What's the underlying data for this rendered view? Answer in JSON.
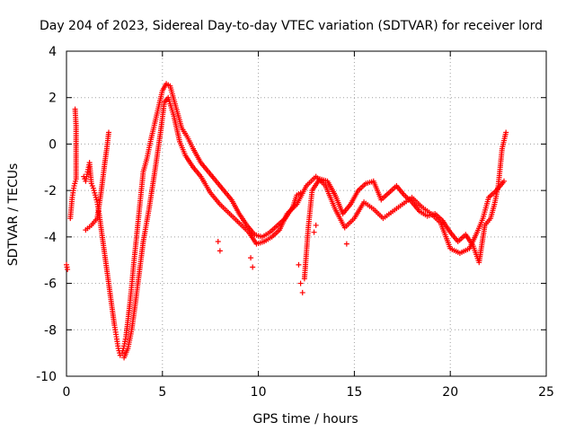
{
  "chart_data": {
    "type": "scatter",
    "title": "Day 204 of 2023, Sidereal Day-to-day VTEC variation (SDTVAR) for receiver lord",
    "xlabel": "GPS time / hours",
    "ylabel": "SDTVAR / TECUs",
    "xlim": [
      0,
      25
    ],
    "ylim": [
      -10,
      4
    ],
    "xticks": [
      0,
      5,
      10,
      15,
      20,
      25
    ],
    "yticks": [
      -10,
      -8,
      -6,
      -4,
      -2,
      0,
      2,
      4
    ],
    "grid": true,
    "marker": "+",
    "series_color": "#ff0000",
    "series": [
      {
        "name": "main-trace",
        "points": [
          [
            0.2,
            -3.2
          ],
          [
            0.3,
            -2.3
          ],
          [
            0.4,
            -1.8
          ],
          [
            0.5,
            -1.5
          ],
          [
            0.5,
            0.8
          ],
          [
            0.45,
            1.5
          ],
          [
            0.0,
            -5.2
          ],
          [
            0.05,
            -5.4
          ],
          [
            0.9,
            -1.4
          ],
          [
            1.0,
            -1.6
          ],
          [
            1.1,
            -1.2
          ],
          [
            1.2,
            -0.8
          ],
          [
            1.3,
            -1.7
          ],
          [
            1.4,
            -1.9
          ],
          [
            1.5,
            -2.2
          ],
          [
            1.6,
            -2.5
          ],
          [
            1.7,
            -3.0
          ],
          [
            1.8,
            -3.6
          ],
          [
            1.9,
            -4.2
          ],
          [
            2.0,
            -4.8
          ],
          [
            2.1,
            -5.4
          ],
          [
            2.2,
            -6.0
          ],
          [
            2.3,
            -6.6
          ],
          [
            2.4,
            -7.2
          ],
          [
            2.5,
            -7.8
          ],
          [
            2.6,
            -8.3
          ],
          [
            2.7,
            -8.8
          ],
          [
            2.8,
            -9.1
          ],
          [
            2.9,
            -9.0
          ],
          [
            3.0,
            -8.7
          ],
          [
            3.1,
            -8.3
          ],
          [
            3.2,
            -7.6
          ],
          [
            3.3,
            -6.9
          ],
          [
            3.4,
            -6.1
          ],
          [
            3.5,
            -5.2
          ],
          [
            3.6,
            -4.4
          ],
          [
            3.7,
            -3.6
          ],
          [
            3.8,
            -2.8
          ],
          [
            3.9,
            -2.0
          ],
          [
            4.0,
            -1.2
          ],
          [
            4.2,
            -0.6
          ],
          [
            4.4,
            0.2
          ],
          [
            4.6,
            0.9
          ],
          [
            4.8,
            1.6
          ],
          [
            5.0,
            2.3
          ],
          [
            5.2,
            2.6
          ],
          [
            5.4,
            2.5
          ],
          [
            5.6,
            1.9
          ],
          [
            5.8,
            1.3
          ],
          [
            6.0,
            0.7
          ],
          [
            6.3,
            0.3
          ],
          [
            6.6,
            -0.2
          ],
          [
            7.0,
            -0.8
          ],
          [
            7.4,
            -1.2
          ],
          [
            7.8,
            -1.6
          ],
          [
            8.2,
            -2.0
          ],
          [
            8.6,
            -2.4
          ],
          [
            9.0,
            -3.0
          ],
          [
            9.4,
            -3.5
          ],
          [
            9.8,
            -3.9
          ],
          [
            10.2,
            -4.0
          ],
          [
            10.6,
            -3.8
          ],
          [
            11.0,
            -3.5
          ],
          [
            11.4,
            -3.2
          ],
          [
            11.8,
            -2.7
          ],
          [
            12.0,
            -2.2
          ],
          [
            12.2,
            -2.1
          ],
          [
            12.4,
            -5.8
          ],
          [
            12.6,
            -3.6
          ],
          [
            12.8,
            -2.0
          ],
          [
            13.2,
            -1.5
          ],
          [
            13.6,
            -1.6
          ],
          [
            14.0,
            -2.2
          ],
          [
            14.4,
            -3.0
          ],
          [
            14.8,
            -2.6
          ],
          [
            15.2,
            -2.0
          ],
          [
            15.6,
            -1.7
          ],
          [
            16.0,
            -1.6
          ],
          [
            16.4,
            -2.4
          ],
          [
            16.8,
            -2.1
          ],
          [
            17.2,
            -1.8
          ],
          [
            17.6,
            -2.2
          ],
          [
            18.0,
            -2.5
          ],
          [
            18.4,
            -2.9
          ],
          [
            18.8,
            -3.1
          ],
          [
            19.2,
            -3.0
          ],
          [
            19.6,
            -3.3
          ],
          [
            20.0,
            -3.8
          ],
          [
            20.4,
            -4.2
          ],
          [
            20.8,
            -3.9
          ],
          [
            21.2,
            -4.4
          ],
          [
            21.5,
            -5.1
          ],
          [
            21.8,
            -3.5
          ],
          [
            22.1,
            -3.2
          ],
          [
            22.3,
            -2.6
          ],
          [
            22.5,
            -1.8
          ],
          [
            22.7,
            -0.2
          ],
          [
            22.9,
            0.5
          ]
        ]
      },
      {
        "name": "secondary-trace",
        "points": [
          [
            1.0,
            -3.7
          ],
          [
            1.3,
            -3.5
          ],
          [
            1.6,
            -3.2
          ],
          [
            1.8,
            -2.1
          ],
          [
            2.0,
            -0.8
          ],
          [
            2.1,
            -0.2
          ],
          [
            2.2,
            0.5
          ],
          [
            3.0,
            -9.2
          ],
          [
            3.2,
            -8.8
          ],
          [
            3.4,
            -8.0
          ],
          [
            3.6,
            -6.8
          ],
          [
            3.8,
            -5.5
          ],
          [
            4.0,
            -4.2
          ],
          [
            4.3,
            -2.8
          ],
          [
            4.6,
            -1.2
          ],
          [
            4.9,
            0.5
          ],
          [
            5.1,
            1.8
          ],
          [
            5.3,
            2.0
          ],
          [
            5.6,
            1.2
          ],
          [
            5.9,
            0.1
          ],
          [
            6.2,
            -0.5
          ],
          [
            6.6,
            -1.0
          ],
          [
            7.0,
            -1.4
          ],
          [
            7.5,
            -2.1
          ],
          [
            8.0,
            -2.6
          ],
          [
            8.5,
            -3.0
          ],
          [
            9.0,
            -3.4
          ],
          [
            9.5,
            -3.8
          ],
          [
            9.9,
            -4.3
          ],
          [
            10.3,
            -4.2
          ],
          [
            10.7,
            -4.0
          ],
          [
            11.1,
            -3.7
          ],
          [
            11.5,
            -3.0
          ],
          [
            12.0,
            -2.6
          ],
          [
            12.5,
            -1.8
          ],
          [
            13.0,
            -1.4
          ],
          [
            13.5,
            -1.8
          ],
          [
            14.0,
            -2.8
          ],
          [
            14.5,
            -3.6
          ],
          [
            15.0,
            -3.2
          ],
          [
            15.5,
            -2.5
          ],
          [
            16.0,
            -2.8
          ],
          [
            16.5,
            -3.2
          ],
          [
            17.0,
            -2.9
          ],
          [
            17.5,
            -2.6
          ],
          [
            18.0,
            -2.3
          ],
          [
            18.5,
            -2.7
          ],
          [
            19.0,
            -3.0
          ],
          [
            19.5,
            -3.4
          ],
          [
            20.0,
            -4.5
          ],
          [
            20.5,
            -4.7
          ],
          [
            21.0,
            -4.5
          ],
          [
            21.4,
            -3.8
          ],
          [
            21.7,
            -3.2
          ],
          [
            22.0,
            -2.3
          ],
          [
            22.4,
            -2.0
          ],
          [
            22.8,
            -1.6
          ]
        ]
      },
      {
        "name": "outlier-spikes",
        "points": [
          [
            8.0,
            -4.6
          ],
          [
            7.9,
            -4.2
          ],
          [
            9.7,
            -5.3
          ],
          [
            9.6,
            -4.9
          ],
          [
            12.3,
            -6.4
          ],
          [
            12.2,
            -6.0
          ],
          [
            12.1,
            -5.2
          ],
          [
            12.9,
            -3.8
          ],
          [
            14.6,
            -4.3
          ],
          [
            13.0,
            -3.5
          ]
        ]
      }
    ]
  }
}
